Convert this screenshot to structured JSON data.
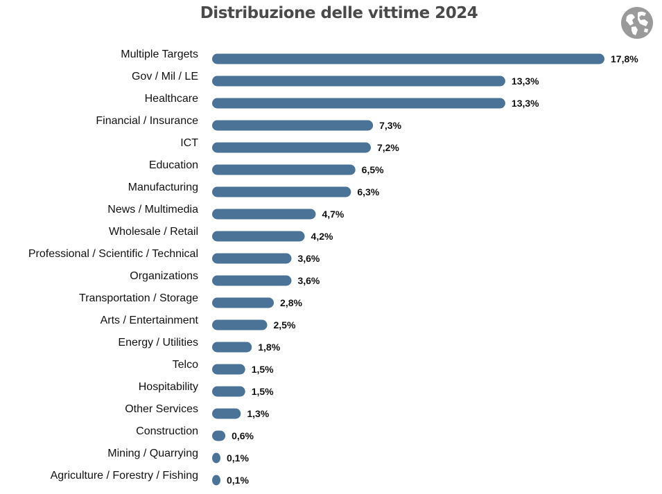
{
  "colors": {
    "bar": "#4a7397",
    "title": "#4a4a4a",
    "icon": "#9a9a9a"
  },
  "icons": {
    "corner": "globe-icon"
  },
  "chart_data": {
    "type": "bar",
    "orientation": "horizontal",
    "title": "Distribuzione delle vittime 2024",
    "xlabel": "",
    "ylabel": "",
    "grid": false,
    "categories": [
      "Multiple Targets",
      "Gov / Mil / LE",
      "Healthcare",
      "Financial / Insurance",
      "ICT",
      "Education",
      "Manufacturing",
      "News / Multimedia",
      "Wholesale / Retail",
      "Professional / Scientific / Technical",
      "Organizations",
      "Transportation / Storage",
      "Arts / Entertainment",
      "Energy / Utilities",
      "Telco",
      "Hospitability",
      "Other Services",
      "Construction",
      "Mining / Quarrying",
      "Agriculture / Forestry / Fishing"
    ],
    "values": [
      17.8,
      13.3,
      13.3,
      7.3,
      7.2,
      6.5,
      6.3,
      4.7,
      4.2,
      3.6,
      3.6,
      2.8,
      2.5,
      1.8,
      1.5,
      1.5,
      1.3,
      0.6,
      0.1,
      0.1
    ],
    "value_labels": [
      "17,8%",
      "13,3%",
      "13,3%",
      "7,3%",
      "7,2%",
      "6,5%",
      "6,3%",
      "4,7%",
      "4,2%",
      "3,6%",
      "3,6%",
      "2,8%",
      "2,5%",
      "1,8%",
      "1,5%",
      "1,5%",
      "1,3%",
      "0,6%",
      "0,1%",
      "0,1%"
    ]
  }
}
